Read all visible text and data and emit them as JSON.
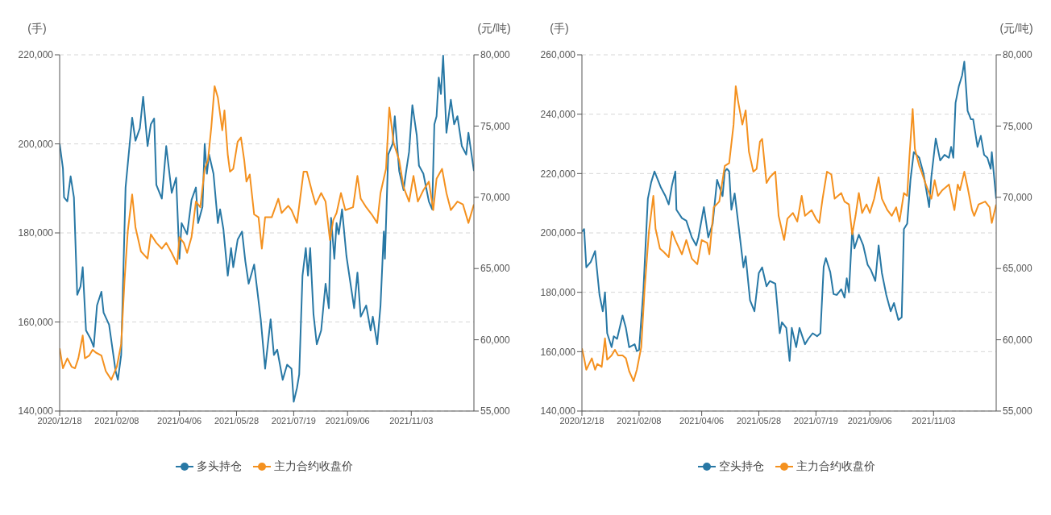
{
  "chart_data": [
    {
      "type": "line",
      "ylabel": "(手)",
      "y2label": "(元/吨)",
      "xlim": [
        "2020-12-18",
        "2021-12-30"
      ],
      "xticks": [
        {
          "value": "2020-12-18",
          "label": "2020/12/18"
        },
        {
          "value": "2021-02-08",
          "label": "2021/02/08"
        },
        {
          "value": "2021-04-06",
          "label": "2021/04/06"
        },
        {
          "value": "2021-05-28",
          "label": "2021/05/28"
        },
        {
          "value": "2021-07-19",
          "label": "2021/07/19"
        },
        {
          "value": "2021-09-06",
          "label": "2021/09/06"
        },
        {
          "value": "2021-11-03",
          "label": "2021/11/03"
        }
      ],
      "ylim": [
        140000,
        220000
      ],
      "yticks": [
        {
          "value": 140000,
          "label": "140,000"
        },
        {
          "value": 160000,
          "label": "160,000"
        },
        {
          "value": 180000,
          "label": "180,000"
        },
        {
          "value": 200000,
          "label": "200,000"
        },
        {
          "value": 220000,
          "label": "220,000"
        }
      ],
      "y2lim": [
        55000,
        80000
      ],
      "y2ticks": [
        {
          "value": 55000,
          "label": "55,000"
        },
        {
          "value": 60000,
          "label": "60,000"
        },
        {
          "value": 65000,
          "label": "65,000"
        },
        {
          "value": 70000,
          "label": "70,000"
        },
        {
          "value": 75000,
          "label": "75,000"
        },
        {
          "value": 80000,
          "label": "80,000"
        }
      ],
      "grid": "y",
      "legend": "bottom",
      "series": [
        {
          "name": "多头持仓",
          "color": "#2878a5",
          "x": [
            "2020-12-18",
            "2020-12-21",
            "2020-12-22",
            "2020-12-25",
            "2020-12-28",
            "2020-12-31",
            "2021-01-03",
            "2021-01-06",
            "2021-01-08",
            "2021-01-11",
            "2021-01-15",
            "2021-01-18",
            "2021-01-21",
            "2021-01-25",
            "2021-01-27",
            "2021-02-01",
            "2021-02-07",
            "2021-02-09",
            "2021-02-12",
            "2021-02-16",
            "2021-02-22",
            "2021-02-25",
            "2021-03-01",
            "2021-03-04",
            "2021-03-08",
            "2021-03-11",
            "2021-03-14",
            "2021-03-16",
            "2021-03-21",
            "2021-03-25",
            "2021-03-30",
            "2021-04-03",
            "2021-04-06",
            "2021-04-08",
            "2021-04-13",
            "2021-04-17",
            "2021-04-21",
            "2021-04-23",
            "2021-04-27",
            "2021-04-29",
            "2021-05-01",
            "2021-05-03",
            "2021-05-07",
            "2021-05-11",
            "2021-05-13",
            "2021-05-16",
            "2021-05-20",
            "2021-05-23",
            "2021-05-25",
            "2021-05-29",
            "2021-06-02",
            "2021-06-05",
            "2021-06-08",
            "2021-06-13",
            "2021-06-16",
            "2021-06-19",
            "2021-06-23",
            "2021-06-28",
            "2021-07-01",
            "2021-07-04",
            "2021-07-09",
            "2021-07-13",
            "2021-07-17",
            "2021-07-19",
            "2021-07-22",
            "2021-07-24",
            "2021-07-27",
            "2021-07-30",
            "2021-08-01",
            "2021-08-03",
            "2021-08-06",
            "2021-08-09",
            "2021-08-13",
            "2021-08-17",
            "2021-08-20",
            "2021-08-22",
            "2021-08-25",
            "2021-08-27",
            "2021-08-29",
            "2021-09-01",
            "2021-09-05",
            "2021-09-12",
            "2021-09-15",
            "2021-09-18",
            "2021-09-23",
            "2021-09-27",
            "2021-09-29",
            "2021-10-03",
            "2021-10-06",
            "2021-10-09",
            "2021-10-10",
            "2021-10-13",
            "2021-10-17",
            "2021-10-19",
            "2021-10-23",
            "2021-10-27",
            "2021-10-29",
            "2021-11-01",
            "2021-11-04",
            "2021-11-08",
            "2021-11-10",
            "2021-11-14",
            "2021-11-19",
            "2021-11-22",
            "2021-11-24",
            "2021-11-26",
            "2021-11-28",
            "2021-11-30",
            "2021-12-02",
            "2021-12-05",
            "2021-12-09",
            "2021-12-12",
            "2021-12-15",
            "2021-12-19",
            "2021-12-23",
            "2021-12-25",
            "2021-12-30"
          ],
          "values": [
            200000,
            194500,
            188000,
            187100,
            192700,
            188000,
            166100,
            168000,
            172300,
            158100,
            156300,
            154400,
            163700,
            166800,
            162100,
            159400,
            148900,
            147000,
            152600,
            190200,
            205900,
            200700,
            203500,
            210600,
            199500,
            204400,
            205700,
            190800,
            187700,
            199500,
            189000,
            192400,
            174200,
            182200,
            179700,
            187400,
            190200,
            182200,
            185900,
            200000,
            193300,
            197600,
            193300,
            182200,
            185300,
            180900,
            170400,
            176600,
            172300,
            178500,
            180300,
            173600,
            168600,
            172900,
            166800,
            160600,
            149500,
            160600,
            152600,
            153800,
            147000,
            150400,
            149500,
            142100,
            145200,
            148200,
            170400,
            176600,
            170400,
            176600,
            161800,
            155000,
            158100,
            168600,
            163100,
            183400,
            174200,
            182200,
            179700,
            185300,
            174800,
            163100,
            171100,
            161200,
            163700,
            158100,
            161200,
            155000,
            163700,
            180300,
            174200,
            197600,
            200000,
            206200,
            193900,
            189600,
            193300,
            198200,
            208700,
            201900,
            195100,
            193300,
            187100,
            185300,
            204400,
            206200,
            214900,
            211200,
            219800,
            202500,
            209900,
            204400,
            206200,
            199500,
            197600,
            202500,
            193900
          ]
        },
        {
          "name": "主力合约收盘价",
          "color": "#f4911f",
          "axis": "y2",
          "x": [
            "2020-12-18",
            "2020-12-21",
            "2020-12-25",
            "2020-12-29",
            "2021-01-01",
            "2021-01-04",
            "2021-01-08",
            "2021-01-10",
            "2021-01-14",
            "2021-01-17",
            "2021-01-20",
            "2021-01-25",
            "2021-01-29",
            "2021-02-03",
            "2021-02-08",
            "2021-02-12",
            "2021-02-15",
            "2021-02-18",
            "2021-02-22",
            "2021-02-25",
            "2021-03-02",
            "2021-03-08",
            "2021-03-11",
            "2021-03-16",
            "2021-03-21",
            "2021-03-25",
            "2021-03-30",
            "2021-04-04",
            "2021-04-06",
            "2021-04-10",
            "2021-04-13",
            "2021-04-17",
            "2021-04-21",
            "2021-04-25",
            "2021-04-29",
            "2021-05-02",
            "2021-05-05",
            "2021-05-08",
            "2021-05-11",
            "2021-05-15",
            "2021-05-17",
            "2021-05-20",
            "2021-05-22",
            "2021-05-25",
            "2021-05-29",
            "2021-06-01",
            "2021-06-04",
            "2021-06-06",
            "2021-06-09",
            "2021-06-13",
            "2021-06-17",
            "2021-06-20",
            "2021-06-23",
            "2021-06-29",
            "2021-07-05",
            "2021-07-08",
            "2021-07-14",
            "2021-07-17",
            "2021-07-22",
            "2021-07-28",
            "2021-07-31",
            "2021-08-05",
            "2021-08-08",
            "2021-08-13",
            "2021-08-17",
            "2021-08-21",
            "2021-08-24",
            "2021-08-27",
            "2021-08-31",
            "2021-09-04",
            "2021-09-11",
            "2021-09-15",
            "2021-09-18",
            "2021-09-23",
            "2021-09-28",
            "2021-10-03",
            "2021-10-06",
            "2021-10-11",
            "2021-10-14",
            "2021-10-18",
            "2021-10-23",
            "2021-10-27",
            "2021-11-01",
            "2021-11-05",
            "2021-11-09",
            "2021-11-14",
            "2021-11-19",
            "2021-11-23",
            "2021-11-26",
            "2021-12-01",
            "2021-12-05",
            "2021-12-09",
            "2021-12-15",
            "2021-12-20",
            "2021-12-25",
            "2021-12-30"
          ],
          "values": [
            59400,
            58000,
            58700,
            58100,
            58000,
            58700,
            60300,
            58700,
            58900,
            59300,
            59100,
            58900,
            57800,
            57200,
            58100,
            59700,
            64100,
            67600,
            70200,
            67900,
            66200,
            65700,
            67400,
            66800,
            66400,
            66800,
            66100,
            65300,
            67200,
            66800,
            66100,
            67200,
            69700,
            69300,
            72000,
            72600,
            74900,
            77800,
            77000,
            74700,
            76100,
            73000,
            71800,
            72000,
            73900,
            74200,
            72600,
            71100,
            71600,
            68800,
            68600,
            66400,
            68600,
            68600,
            69900,
            68900,
            69400,
            69100,
            68200,
            71800,
            71800,
            70300,
            69500,
            70300,
            69700,
            67000,
            68400,
            68900,
            70300,
            69100,
            69300,
            71500,
            69900,
            69300,
            68800,
            68200,
            70300,
            72000,
            76300,
            73800,
            72600,
            70700,
            69700,
            71500,
            69700,
            70500,
            71100,
            69100,
            71300,
            72000,
            70300,
            69100,
            69700,
            69500,
            68200,
            69500
          ]
        }
      ]
    },
    {
      "type": "line",
      "ylabel": "(手)",
      "y2label": "(元/吨)",
      "xlim": [
        "2020-12-18",
        "2021-12-30"
      ],
      "xticks": [
        {
          "value": "2020-12-18",
          "label": "2020/12/18"
        },
        {
          "value": "2021-02-08",
          "label": "2021/02/08"
        },
        {
          "value": "2021-04-06",
          "label": "2021/04/06"
        },
        {
          "value": "2021-05-28",
          "label": "2021/05/28"
        },
        {
          "value": "2021-07-19",
          "label": "2021/07/19"
        },
        {
          "value": "2021-09-06",
          "label": "2021/09/06"
        },
        {
          "value": "2021-11-03",
          "label": "2021/11/03"
        }
      ],
      "ylim": [
        140000,
        260000
      ],
      "yticks": [
        {
          "value": 140000,
          "label": "140,000"
        },
        {
          "value": 160000,
          "label": "160,000"
        },
        {
          "value": 180000,
          "label": "180,000"
        },
        {
          "value": 200000,
          "label": "200,000"
        },
        {
          "value": 220000,
          "label": "220,000"
        },
        {
          "value": 240000,
          "label": "240,000"
        },
        {
          "value": 260000,
          "label": "260,000"
        }
      ],
      "y2lim": [
        55000,
        80000
      ],
      "y2ticks": [
        {
          "value": 55000,
          "label": "55,000"
        },
        {
          "value": 60000,
          "label": "60,000"
        },
        {
          "value": 65000,
          "label": "65,000"
        },
        {
          "value": 70000,
          "label": "70,000"
        },
        {
          "value": 75000,
          "label": "75,000"
        },
        {
          "value": 80000,
          "label": "80,000"
        }
      ],
      "grid": "y",
      "legend": "bottom",
      "series": [
        {
          "name": "空头持仓",
          "color": "#2878a5",
          "x": [
            "2020-12-18",
            "2020-12-20",
            "2020-12-22",
            "2020-12-26",
            "2020-12-29",
            "2020-12-30",
            "2021-01-03",
            "2021-01-06",
            "2021-01-08",
            "2021-01-10",
            "2021-01-14",
            "2021-01-16",
            "2021-01-19",
            "2021-01-24",
            "2021-01-27",
            "2021-01-30",
            "2021-02-04",
            "2021-02-06",
            "2021-02-08",
            "2021-02-12",
            "2021-02-16",
            "2021-02-19",
            "2021-02-22",
            "2021-02-24",
            "2021-02-28",
            "2021-03-04",
            "2021-03-07",
            "2021-03-10",
            "2021-03-13",
            "2021-03-14",
            "2021-03-19",
            "2021-03-23",
            "2021-03-28",
            "2021-04-01",
            "2021-04-03",
            "2021-04-08",
            "2021-04-12",
            "2021-04-16",
            "2021-04-20",
            "2021-04-25",
            "2021-04-27",
            "2021-04-29",
            "2021-05-01",
            "2021-05-03",
            "2021-05-06",
            "2021-05-09",
            "2021-05-14",
            "2021-05-16",
            "2021-05-20",
            "2021-05-24",
            "2021-05-28",
            "2021-05-31",
            "2021-06-04",
            "2021-06-07",
            "2021-06-12",
            "2021-06-16",
            "2021-06-18",
            "2021-06-22",
            "2021-06-25",
            "2021-06-27",
            "2021-07-01",
            "2021-07-04",
            "2021-07-09",
            "2021-07-12",
            "2021-07-16",
            "2021-07-20",
            "2021-07-23",
            "2021-07-26",
            "2021-07-28",
            "2021-08-01",
            "2021-08-04",
            "2021-08-07",
            "2021-08-11",
            "2021-08-14",
            "2021-08-16",
            "2021-08-18",
            "2021-08-21",
            "2021-08-23",
            "2021-08-27",
            "2021-08-31",
            "2021-09-04",
            "2021-09-07",
            "2021-09-11",
            "2021-09-14",
            "2021-09-17",
            "2021-09-21",
            "2021-09-25",
            "2021-09-28",
            "2021-10-02",
            "2021-10-05",
            "2021-10-07",
            "2021-10-10",
            "2021-10-13",
            "2021-10-16",
            "2021-10-21",
            "2021-10-25",
            "2021-10-30",
            "2021-11-01",
            "2021-11-05",
            "2021-11-09",
            "2021-11-13",
            "2021-11-17",
            "2021-11-19",
            "2021-11-21",
            "2021-11-23",
            "2021-11-26",
            "2021-11-29",
            "2021-12-01",
            "2021-12-04",
            "2021-12-07",
            "2021-12-09",
            "2021-12-13",
            "2021-12-16",
            "2021-12-19",
            "2021-12-22",
            "2021-12-25",
            "2021-12-26",
            "2021-12-30"
          ],
          "values": [
            200400,
            201300,
            188400,
            190200,
            193000,
            193900,
            179100,
            173600,
            180000,
            166200,
            161500,
            165200,
            164300,
            172200,
            168000,
            161500,
            162500,
            160200,
            160600,
            181000,
            211500,
            217000,
            220700,
            218900,
            215200,
            212400,
            209600,
            216100,
            220700,
            207800,
            205000,
            204100,
            198500,
            195800,
            198500,
            208700,
            198500,
            203100,
            217900,
            212400,
            220700,
            221600,
            220700,
            207800,
            213300,
            204100,
            188400,
            192100,
            177300,
            173600,
            186500,
            188400,
            182000,
            183800,
            182900,
            166200,
            169900,
            168000,
            156900,
            168000,
            161500,
            168000,
            162500,
            164300,
            166200,
            165200,
            166200,
            188600,
            191500,
            186800,
            179400,
            179100,
            181000,
            178200,
            184700,
            180000,
            201300,
            194800,
            199400,
            195800,
            189300,
            187500,
            183800,
            195800,
            186500,
            179100,
            173600,
            176400,
            170700,
            171600,
            201300,
            203100,
            217900,
            227200,
            225300,
            219800,
            208700,
            218900,
            231800,
            224400,
            226300,
            225300,
            229000,
            225300,
            243800,
            249400,
            253100,
            257700,
            241100,
            238300,
            238300,
            229000,
            232700,
            226300,
            225300,
            221600,
            227200,
            211500
          ]
        },
        {
          "name": "主力合约收盘价",
          "color": "#f4911f",
          "axis": "y2",
          "x": [
            "2020-12-18",
            "2020-12-20",
            "2020-12-22",
            "2020-12-27",
            "2020-12-30",
            "2021-01-01",
            "2021-01-05",
            "2021-01-08",
            "2021-01-10",
            "2021-01-14",
            "2021-01-17",
            "2021-01-20",
            "2021-01-24",
            "2021-01-27",
            "2021-01-30",
            "2021-02-03",
            "2021-02-06",
            "2021-02-10",
            "2021-02-13",
            "2021-02-17",
            "2021-02-21",
            "2021-02-23",
            "2021-02-27",
            "2021-03-02",
            "2021-03-07",
            "2021-03-10",
            "2021-03-13",
            "2021-03-19",
            "2021-03-23",
            "2021-03-28",
            "2021-04-02",
            "2021-04-06",
            "2021-04-11",
            "2021-04-13",
            "2021-04-17",
            "2021-04-22",
            "2021-04-27",
            "2021-05-01",
            "2021-05-05",
            "2021-05-07",
            "2021-05-09",
            "2021-05-13",
            "2021-05-16",
            "2021-05-19",
            "2021-05-23",
            "2021-05-26",
            "2021-05-29",
            "2021-05-31",
            "2021-06-04",
            "2021-06-07",
            "2021-06-12",
            "2021-06-15",
            "2021-06-20",
            "2021-06-23",
            "2021-06-28",
            "2021-07-02",
            "2021-07-06",
            "2021-07-09",
            "2021-07-15",
            "2021-07-19",
            "2021-07-22",
            "2021-07-25",
            "2021-07-29",
            "2021-08-02",
            "2021-08-05",
            "2021-08-08",
            "2021-08-11",
            "2021-08-14",
            "2021-08-18",
            "2021-08-21",
            "2021-08-24",
            "2021-08-27",
            "2021-08-30",
            "2021-09-03",
            "2021-09-06",
            "2021-09-10",
            "2021-09-14",
            "2021-09-17",
            "2021-09-22",
            "2021-09-26",
            "2021-09-30",
            "2021-10-03",
            "2021-10-07",
            "2021-10-10",
            "2021-10-12",
            "2021-10-15",
            "2021-10-17",
            "2021-10-21",
            "2021-10-23",
            "2021-10-27",
            "2021-11-01",
            "2021-11-04",
            "2021-11-07",
            "2021-11-11",
            "2021-11-17",
            "2021-11-22",
            "2021-11-25",
            "2021-11-27",
            "2021-12-01",
            "2021-12-04",
            "2021-12-08",
            "2021-12-10",
            "2021-12-14",
            "2021-12-20",
            "2021-12-24",
            "2021-12-26",
            "2021-12-30"
          ],
          "values": [
            59400,
            58700,
            57900,
            58700,
            57900,
            58300,
            58100,
            60100,
            58600,
            58900,
            59300,
            58900,
            58900,
            58700,
            57800,
            57100,
            57900,
            59500,
            63500,
            67600,
            70100,
            67800,
            66400,
            66200,
            65800,
            67600,
            67000,
            66000,
            67000,
            65700,
            65300,
            67000,
            66800,
            66000,
            69300,
            69700,
            72200,
            72400,
            75100,
            77800,
            76800,
            75100,
            76100,
            73200,
            71800,
            72000,
            73900,
            74100,
            71000,
            71400,
            71800,
            68700,
            67000,
            68500,
            68900,
            68300,
            70100,
            68700,
            69100,
            68500,
            68200,
            69900,
            71800,
            71600,
            69900,
            70100,
            70300,
            69700,
            69500,
            67400,
            68700,
            70300,
            68900,
            69500,
            68900,
            69900,
            71400,
            69900,
            69100,
            68700,
            69300,
            68300,
            70300,
            70100,
            72800,
            76200,
            73400,
            72200,
            71800,
            70900,
            69900,
            71200,
            70100,
            70500,
            70900,
            69100,
            70900,
            70500,
            71800,
            70700,
            69100,
            68700,
            69500,
            69700,
            69300,
            68200,
            69500
          ]
        }
      ]
    }
  ]
}
